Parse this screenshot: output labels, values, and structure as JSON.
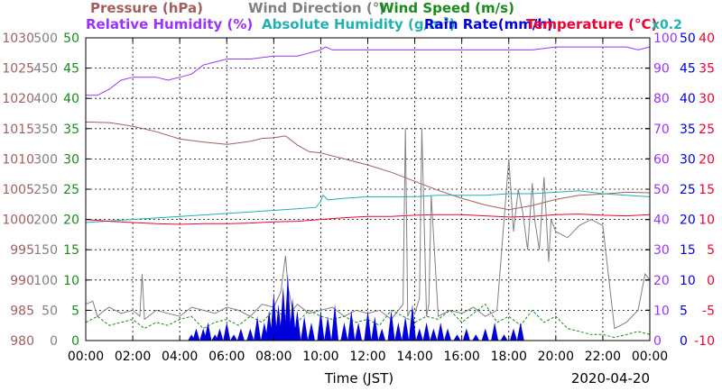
{
  "chart_data": {
    "type": "line",
    "xlabel": "Time (JST)",
    "date": "2020-04-20",
    "x_ticks": [
      "00:00",
      "02:00",
      "04:00",
      "06:00",
      "08:00",
      "10:00",
      "12:00",
      "14:00",
      "16:00",
      "18:00",
      "20:00",
      "22:00",
      "00:00"
    ],
    "x_range_hours": [
      0,
      24
    ],
    "grid": true,
    "legend": {
      "row1": [
        {
          "name": "Pressure (hPa)",
          "color": "#a0605f"
        },
        {
          "name": "Wind Direction (°)",
          "color": "#808080"
        },
        {
          "name": "Wind Speed (m/s)",
          "color": "#1a8a1a"
        }
      ],
      "row2": [
        {
          "name": "Relative Humidity (%)",
          "color": "#9933ff"
        },
        {
          "name": "Absolute Humidity (g/m",
          "sup": "3",
          "close": ")",
          "color": "#22b0b0"
        },
        {
          "name": "Rain Rate(mm/h)",
          "color": "#0000dd"
        },
        {
          "name": "Temperature (°C)",
          "color": "#ee0033"
        }
      ],
      "multiplier": {
        "text": "x0.2",
        "color": "#22b0b0"
      }
    },
    "axes": {
      "pressure": {
        "ticks": [
          "1030",
          "1025",
          "1020",
          "1015",
          "1010",
          "1005",
          "1000",
          "995",
          "990",
          "985",
          "980"
        ],
        "range": [
          980,
          1030
        ],
        "color": "#a0605f"
      },
      "wind_direction": {
        "ticks": [
          "500",
          "450",
          "400",
          "350",
          "300",
          "250",
          "200",
          "150",
          "100",
          "50",
          "0"
        ],
        "range": [
          0,
          500
        ],
        "color": "#808080"
      },
      "wind_speed": {
        "ticks": [
          "50",
          "45",
          "40",
          "35",
          "30",
          "25",
          "20",
          "15",
          "10",
          "5",
          "0"
        ],
        "range": [
          0,
          50
        ],
        "color": "#1a8a1a"
      },
      "humidity": {
        "ticks": [
          "100",
          "90",
          "80",
          "70",
          "60",
          "50",
          "40",
          "30",
          "20",
          "10",
          "0"
        ],
        "range": [
          0,
          100
        ],
        "color": "#9933ff"
      },
      "rain_rate": {
        "ticks": [
          "50",
          "45",
          "40",
          "35",
          "30",
          "25",
          "20",
          "15",
          "10",
          "5",
          "0"
        ],
        "range": [
          0,
          50
        ],
        "color": "#0000dd"
      },
      "temperature": {
        "ticks": [
          "40",
          "35",
          "30",
          "25",
          "20",
          "15",
          "10",
          "5",
          "0",
          "-5",
          "-10"
        ],
        "range": [
          -10,
          40
        ],
        "color": "#ee0033"
      }
    },
    "series": [
      {
        "name": "Relative Humidity (%)",
        "axis": "humidity",
        "color": "#9933ff",
        "x": [
          0,
          0.5,
          1,
          1.5,
          2,
          3,
          3.5,
          4,
          4.5,
          5,
          5.5,
          6,
          7,
          8,
          9,
          9.5,
          10,
          10.2,
          10.5,
          11,
          13,
          14,
          16,
          18,
          19,
          20,
          21,
          21.5,
          22,
          23,
          23.5,
          24
        ],
        "y": [
          81,
          81,
          83,
          86,
          87,
          87,
          86,
          87,
          88,
          91,
          92,
          93,
          93,
          94,
          94,
          95,
          96,
          97,
          96,
          96,
          96,
          96,
          96,
          96,
          96,
          97,
          97,
          97,
          97,
          97,
          96,
          97
        ]
      },
      {
        "name": "Pressure (hPa)",
        "axis": "pressure",
        "color": "#a0605f",
        "x": [
          0,
          1,
          2,
          3,
          4,
          5,
          6,
          7,
          7.5,
          8,
          8.5,
          9,
          9.5,
          10,
          11,
          12,
          13,
          14,
          15,
          16,
          17,
          17.5,
          18,
          19,
          20,
          21,
          22,
          23,
          24
        ],
        "y": [
          1016.1,
          1016,
          1015.4,
          1014.5,
          1013.3,
          1012.8,
          1012.4,
          1012.9,
          1013.4,
          1013.5,
          1013.8,
          1012.3,
          1011.2,
          1011,
          1010,
          1009,
          1007.8,
          1006.3,
          1004.8,
          1003.5,
          1002.4,
          1002,
          1001.6,
          1002.3,
          1003.3,
          1004,
          1004.2,
          1004.5,
          1004.4
        ]
      },
      {
        "name": "Absolute Humidity (g/m3) x0.2",
        "axis": "humidity",
        "color": "#22b0b0",
        "x": [
          0,
          1,
          2,
          3,
          4,
          5,
          6,
          7,
          8,
          9,
          9.8,
          10,
          10.1,
          10.3,
          11,
          12,
          13,
          14,
          15,
          16,
          17,
          18,
          19,
          20,
          21,
          22,
          23,
          24
        ],
        "y": [
          39,
          39.5,
          40,
          40.5,
          41,
          41.5,
          42,
          42.5,
          43,
          43.5,
          44,
          46,
          48,
          46.5,
          47,
          47.5,
          47.5,
          47.5,
          48,
          48,
          48,
          48.5,
          48.5,
          49,
          49.5,
          48.5,
          48,
          47.5
        ]
      },
      {
        "name": "Temperature (°C)",
        "axis": "temperature",
        "color": "#ee0033",
        "x": [
          0,
          1,
          2,
          3,
          4,
          5,
          6,
          7,
          8,
          9,
          10,
          11,
          12,
          13,
          14,
          15,
          16,
          17,
          18,
          19,
          20,
          21,
          22,
          23,
          24
        ],
        "y": [
          10,
          9.7,
          9.5,
          9.3,
          9.2,
          9.3,
          9.3,
          9.4,
          9.6,
          9.7,
          10,
          10.3,
          10.5,
          10.5,
          10.7,
          10.8,
          10.8,
          10.6,
          10.4,
          10.5,
          10.8,
          10.9,
          10.7,
          10.6,
          10.8
        ]
      },
      {
        "name": "Wind Direction (°)",
        "axis": "wind_direction",
        "color": "#808080",
        "x": [
          0,
          0.3,
          0.5,
          0.8,
          1,
          1.5,
          2,
          2.3,
          2.4,
          2.5,
          3,
          3.5,
          4,
          4.5,
          5,
          5.5,
          6,
          6.5,
          7,
          7.5,
          8,
          8.3,
          8.5,
          8.6,
          8.8,
          9,
          9.5,
          10,
          10.5,
          11,
          11.5,
          12,
          12.5,
          13,
          13.5,
          13.6,
          13.7,
          13.8,
          14,
          14.2,
          14.3,
          14.5,
          14.6,
          14.7,
          15,
          15.5,
          16,
          16.5,
          17,
          17.5,
          18,
          18.2,
          18.4,
          18.6,
          18.8,
          19,
          19.1,
          19.3,
          19.5,
          19.7,
          19.8,
          20,
          20.5,
          21,
          21.5,
          22,
          22.5,
          23,
          23.5,
          23.8,
          24
        ],
        "y": [
          60,
          65,
          40,
          50,
          55,
          45,
          50,
          40,
          110,
          35,
          50,
          45,
          40,
          55,
          50,
          45,
          55,
          50,
          40,
          60,
          55,
          80,
          140,
          90,
          50,
          60,
          45,
          50,
          55,
          40,
          50,
          45,
          50,
          35,
          60,
          350,
          40,
          50,
          45,
          70,
          350,
          40,
          60,
          240,
          40,
          50,
          45,
          55,
          40,
          50,
          300,
          180,
          250,
          210,
          150,
          260,
          200,
          150,
          270,
          130,
          200,
          180,
          170,
          190,
          200,
          190,
          20,
          30,
          50,
          110,
          100
        ]
      },
      {
        "name": "Wind Speed (m/s)",
        "axis": "wind_speed",
        "color": "#1a8a1a",
        "x": [
          0,
          0.5,
          1,
          1.5,
          2,
          2.5,
          3,
          3.5,
          4,
          4.5,
          5,
          5.5,
          6,
          6.5,
          7,
          7.5,
          8,
          8.5,
          9,
          9.5,
          10,
          10.5,
          11,
          11.5,
          12,
          12.5,
          13,
          13.5,
          14,
          14.5,
          15,
          15.5,
          16,
          16.5,
          17,
          17.5,
          18,
          18.5,
          19,
          19.5,
          20,
          20.5,
          21,
          21.5,
          22,
          22.5,
          23,
          23.5,
          24
        ],
        "y": [
          3,
          4,
          2.5,
          3,
          3.5,
          2,
          3,
          2.5,
          3.5,
          4,
          2,
          3,
          3.5,
          2.5,
          4,
          3,
          5,
          4,
          3,
          5,
          4,
          3.5,
          4,
          3,
          3.5,
          2.5,
          5,
          4,
          3,
          4,
          3.5,
          5,
          3,
          4.5,
          6,
          3,
          4,
          2.5,
          5,
          3,
          4,
          2,
          1.5,
          1,
          1,
          0.5,
          1,
          1.5,
          1
        ]
      },
      {
        "name": "Rain Rate(mm/h)",
        "axis": "rain_rate",
        "color": "#0000dd",
        "x": [
          4.5,
          4.7,
          5,
          5.2,
          5.5,
          5.7,
          6,
          6.3,
          6.6,
          7,
          7.3,
          7.6,
          7.8,
          8,
          8.2,
          8.4,
          8.6,
          8.8,
          9,
          9.3,
          9.6,
          10,
          10.3,
          10.6,
          11,
          11.3,
          11.6,
          12,
          12.3,
          12.6,
          13,
          13.3,
          13.6,
          13.9,
          14.2,
          14.5,
          14.8,
          15.1,
          15.4,
          15.8,
          16.2,
          16.6,
          17,
          17.4,
          17.8,
          18.2,
          18.5
        ],
        "y": [
          1,
          2,
          2,
          3,
          1,
          2,
          3,
          1,
          2,
          2,
          4,
          3,
          5,
          8,
          6,
          9,
          11,
          7,
          5,
          4,
          3,
          5,
          4,
          6,
          3,
          5,
          3,
          5,
          4,
          2,
          5,
          3,
          4,
          6,
          2,
          3,
          2,
          3,
          2,
          1,
          2,
          1,
          2,
          3,
          1,
          2,
          3
        ]
      }
    ]
  }
}
